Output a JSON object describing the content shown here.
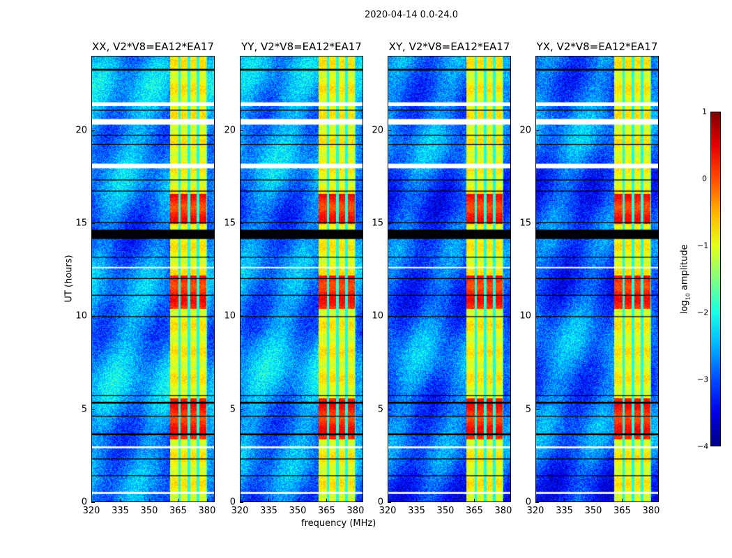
{
  "suptitle": "2020-04-14 0.0-24.0",
  "chart_data": {
    "type": "heatmap",
    "title": "2020-04-14 0.0-24.0",
    "xlabel": "frequency (MHz)",
    "ylabel": "UT (hours)",
    "xlim": [
      320,
      384
    ],
    "ylim": [
      0,
      24
    ],
    "xticks": [
      "320",
      "335",
      "350",
      "365",
      "380"
    ],
    "xtick_values": [
      320,
      335,
      350,
      365,
      380
    ],
    "yticks": [
      "0",
      "5",
      "10",
      "15",
      "20"
    ],
    "ytick_values": [
      0,
      5,
      10,
      15,
      20
    ],
    "panels": [
      {
        "title": "XX, V2*V8=EA12*EA17",
        "pol": "XX"
      },
      {
        "title": "YY, V2*V8=EA12*EA17",
        "pol": "YY"
      },
      {
        "title": "XY, V2*V8=EA12*EA17",
        "pol": "XY"
      },
      {
        "title": "YX, V2*V8=EA12*EA17",
        "pol": "YX"
      }
    ],
    "colorbar": {
      "label": "log10 amplitude",
      "label_main": "log",
      "label_sub": "10",
      "label_tail": " amplitude",
      "range": [
        -4,
        1
      ],
      "ticks": [
        "1",
        "0",
        "−1",
        "−2",
        "−3",
        "−4"
      ],
      "tick_values": [
        1,
        0,
        -1,
        -2,
        -3,
        -4
      ],
      "colormap": "jet"
    },
    "background_level": -2.7,
    "rfi_band_mhz": [
      360.5,
      380
    ],
    "rfi_level": -0.9,
    "subband_gaps_mhz": [
      365.5,
      370.5,
      375.2,
      380
    ],
    "strong_intervals_hours": [
      [
        15.0,
        16.6
      ],
      [
        10.4,
        12.2
      ],
      [
        3.4,
        5.6
      ]
    ],
    "strong_level": 0.2,
    "flagged_white_hours": [
      [
        21.3,
        21.5
      ],
      [
        20.3,
        20.6
      ],
      [
        17.95,
        18.2
      ],
      [
        12.6,
        12.65
      ],
      [
        2.9,
        3.0
      ],
      [
        0.45,
        0.55
      ]
    ],
    "black_lines_hours": [
      [
        23.2,
        23.3
      ],
      [
        21.05,
        21.1
      ],
      [
        19.7,
        19.75
      ],
      [
        19.2,
        19.25
      ],
      [
        17.3,
        17.35
      ],
      [
        16.7,
        16.75
      ],
      [
        15.0,
        15.05
      ],
      [
        14.15,
        14.65
      ],
      [
        13.15,
        13.2
      ],
      [
        12.0,
        12.05
      ],
      [
        11.1,
        11.15
      ],
      [
        9.95,
        10.0
      ],
      [
        5.7,
        5.75
      ],
      [
        5.3,
        5.4
      ],
      [
        4.6,
        4.65
      ],
      [
        3.6,
        3.7
      ],
      [
        2.3,
        2.35
      ],
      [
        1.4,
        1.45
      ]
    ]
  }
}
